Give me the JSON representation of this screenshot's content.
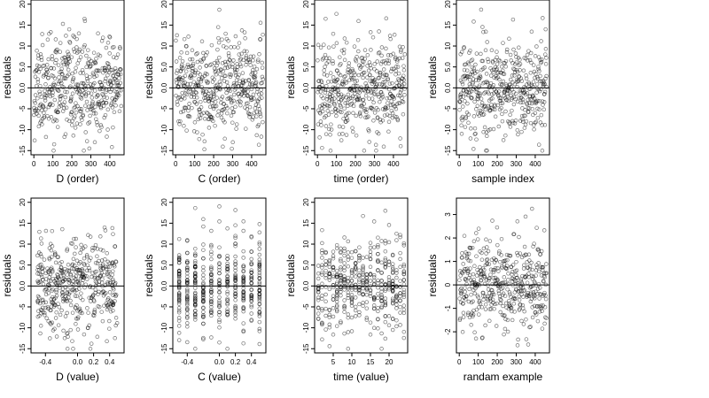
{
  "chart_data": [
    {
      "type": "scatter",
      "xlabel": "D (order)",
      "ylabel": "residuals",
      "xlim": [
        -15,
        475
      ],
      "xticks": [
        0,
        100,
        200,
        300,
        400
      ],
      "xtick_labels": [
        "0",
        "100",
        "200",
        "300",
        "400"
      ],
      "ylim": [
        -16,
        21
      ],
      "yticks": [
        -15,
        -10,
        -5,
        0,
        5,
        10,
        15,
        20
      ],
      "ytick_labels": [
        "-15",
        "-10",
        "-5",
        "0.0",
        "5.0",
        "10",
        "15",
        "20"
      ],
      "hline": 0,
      "sample": {
        "n": 460,
        "seed": 11,
        "x_kind": "index",
        "y_sd": 5.7,
        "y_min": -15,
        "y_max": 20
      }
    },
    {
      "type": "scatter",
      "xlabel": "C (order)",
      "ylabel": "residuals",
      "xlim": [
        -15,
        475
      ],
      "xticks": [
        0,
        100,
        200,
        300,
        400
      ],
      "xtick_labels": [
        "0",
        "100",
        "200",
        "300",
        "400"
      ],
      "ylim": [
        -16,
        21
      ],
      "yticks": [
        -15,
        -10,
        -5,
        0,
        5,
        10,
        15,
        20
      ],
      "ytick_labels": [
        "-15",
        "-10",
        "-5",
        "0.0",
        "5.0",
        "10",
        "15",
        "20"
      ],
      "hline": 0,
      "sample": {
        "n": 460,
        "seed": 23,
        "x_kind": "index",
        "y_sd": 5.7,
        "y_min": -15,
        "y_max": 20
      }
    },
    {
      "type": "scatter",
      "xlabel": "time (order)",
      "ylabel": "residuals",
      "xlim": [
        -15,
        475
      ],
      "xticks": [
        0,
        100,
        200,
        300,
        400
      ],
      "xtick_labels": [
        "0",
        "100",
        "200",
        "300",
        "400"
      ],
      "ylim": [
        -16,
        21
      ],
      "yticks": [
        -15,
        -10,
        -5,
        0,
        5,
        10,
        15,
        20
      ],
      "ytick_labels": [
        "-15",
        "-10",
        "-5",
        "0.0",
        "5.0",
        "10",
        "15",
        "20"
      ],
      "hline": 0,
      "sample": {
        "n": 460,
        "seed": 37,
        "x_kind": "index",
        "y_sd": 5.7,
        "y_min": -15,
        "y_max": 20
      }
    },
    {
      "type": "scatter",
      "xlabel": "sample index",
      "ylabel": "residuals",
      "xlim": [
        -15,
        475
      ],
      "xticks": [
        0,
        100,
        200,
        300,
        400
      ],
      "xtick_labels": [
        "0",
        "100",
        "200",
        "300",
        "400"
      ],
      "ylim": [
        -16,
        21
      ],
      "yticks": [
        -15,
        -10,
        -5,
        0,
        5,
        10,
        15,
        20
      ],
      "ytick_labels": [
        "-15",
        "-10",
        "-5",
        "0.0",
        "5.0",
        "10",
        "15",
        "20"
      ],
      "hline": 0,
      "sample": {
        "n": 460,
        "seed": 41,
        "x_kind": "index",
        "y_sd": 5.7,
        "y_min": -15,
        "y_max": 20
      }
    },
    {
      "type": "scatter",
      "xlabel": "D (value)",
      "ylabel": "residuals",
      "xlim": [
        -0.58,
        0.58
      ],
      "xticks": [
        -0.4,
        0.0,
        0.2,
        0.4
      ],
      "xtick_labels": [
        "-0.4",
        "0.0",
        "0.2",
        "0.4"
      ],
      "ylim": [
        -16,
        21
      ],
      "yticks": [
        -15,
        -10,
        -5,
        0,
        5,
        10,
        15,
        20
      ],
      "ytick_labels": [
        "-15",
        "-10",
        "-5",
        "0.0",
        "5.0",
        "10",
        "15",
        "20"
      ],
      "hline": 0,
      "sample": {
        "n": 460,
        "seed": 53,
        "x_kind": "continuous",
        "x_min": -0.5,
        "x_max": 0.5,
        "y_sd": 5.7,
        "y_min": -15,
        "y_max": 20
      }
    },
    {
      "type": "scatter",
      "xlabel": "C (value)",
      "ylabel": "residuals",
      "xlim": [
        -0.58,
        0.58
      ],
      "xticks": [
        -0.4,
        0.0,
        0.2,
        0.4
      ],
      "xtick_labels": [
        "-0.4",
        "0.0",
        "0.2",
        "0.4"
      ],
      "ylim": [
        -16,
        21
      ],
      "yticks": [
        -15,
        -10,
        -5,
        0,
        5,
        10,
        15,
        20
      ],
      "ytick_labels": [
        "-15",
        "-10",
        "-5",
        "0.0",
        "5.0",
        "10",
        "15",
        "20"
      ],
      "hline": 0,
      "sample": {
        "n": 460,
        "seed": 67,
        "x_kind": "discrete",
        "x_levels": [
          -0.5,
          -0.4,
          -0.3,
          -0.2,
          -0.1,
          0.0,
          0.1,
          0.2,
          0.3,
          0.4,
          0.5
        ],
        "y_sd": 5.7,
        "y_min": -15,
        "y_max": 20
      }
    },
    {
      "type": "scatter",
      "xlabel": "time (value)",
      "ylabel": "residuals",
      "xlim": [
        0,
        25
      ],
      "xticks": [
        5,
        10,
        15,
        20
      ],
      "xtick_labels": [
        "5",
        "10",
        "15",
        "20"
      ],
      "ylim": [
        -16,
        21
      ],
      "yticks": [
        -15,
        -10,
        -5,
        0,
        5,
        10,
        15,
        20
      ],
      "ytick_labels": [
        "-15",
        "-10",
        "-5",
        "0.0",
        "5.0",
        "10",
        "15",
        "20"
      ],
      "hline": 0,
      "sample": {
        "n": 460,
        "seed": 79,
        "x_kind": "discrete",
        "x_levels": [
          1,
          2,
          3,
          4,
          5,
          6,
          7,
          8,
          9,
          10,
          11,
          12,
          13,
          14,
          15,
          16,
          17,
          18,
          19,
          20,
          21,
          22,
          23,
          24
        ],
        "y_sd": 5.7,
        "y_min": -15,
        "y_max": 20
      }
    },
    {
      "type": "scatter",
      "xlabel": "randam example",
      "ylabel": "residuals",
      "xlim": [
        -15,
        475
      ],
      "xticks": [
        0,
        100,
        200,
        300,
        400
      ],
      "xtick_labels": [
        "0",
        "100",
        "200",
        "300",
        "400"
      ],
      "ylim": [
        -2.9,
        3.7
      ],
      "yticks": [
        -2,
        -1,
        0,
        1,
        2,
        3
      ],
      "ytick_labels": [
        "-2",
        "-1",
        "0",
        "1",
        "2",
        "3"
      ],
      "hline": 0,
      "sample": {
        "n": 460,
        "seed": 97,
        "x_kind": "index",
        "y_sd": 1.0,
        "y_min": -2.6,
        "y_max": 3.5
      }
    }
  ]
}
